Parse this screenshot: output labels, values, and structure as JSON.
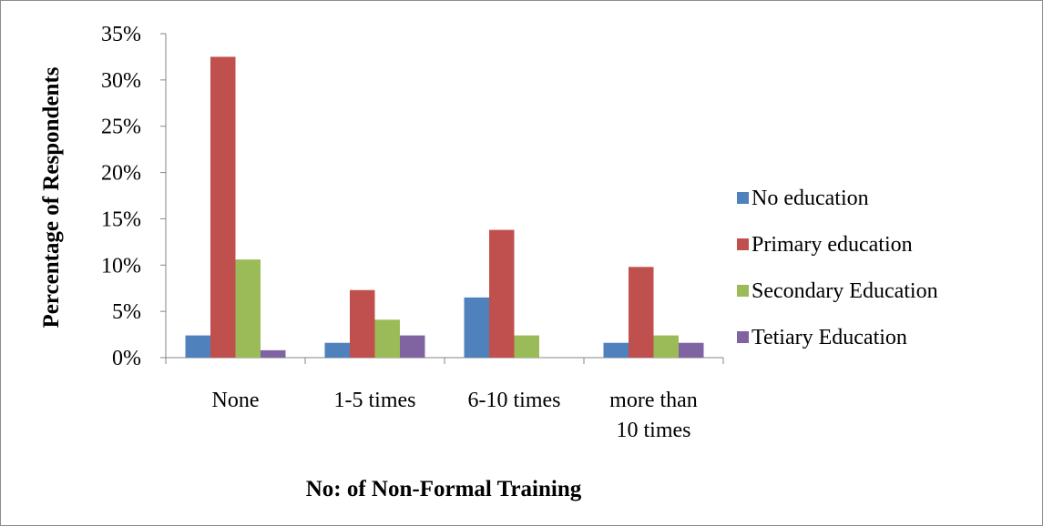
{
  "chart_data": {
    "type": "bar",
    "title": "",
    "xlabel": "No: of Non-Formal Training",
    "ylabel": "Percentage of Respondents",
    "categories": [
      [
        "None"
      ],
      [
        "1-5 times"
      ],
      [
        "6-10 times"
      ],
      [
        "more than",
        "10 times"
      ]
    ],
    "ylim": [
      0,
      35
    ],
    "yticks": [
      0,
      5,
      10,
      15,
      20,
      25,
      30,
      35
    ],
    "ytick_labels": [
      "0%",
      "5%",
      "10%",
      "15%",
      "20%",
      "25%",
      "30%",
      "35%"
    ],
    "grid": false,
    "legend_position": "right",
    "series": [
      {
        "name": "No education",
        "color": "#4f81bd",
        "values": [
          2.4,
          1.6,
          6.5,
          1.6
        ]
      },
      {
        "name": "Primary education",
        "color": "#c0504d",
        "values": [
          32.5,
          7.3,
          13.8,
          9.8
        ]
      },
      {
        "name": "Secondary Education",
        "color": "#9bbb59",
        "values": [
          10.6,
          4.1,
          2.4,
          2.4
        ]
      },
      {
        "name": "Tetiary Education",
        "color": "#8064a2",
        "values": [
          0.8,
          2.4,
          0,
          1.6
        ]
      }
    ]
  }
}
